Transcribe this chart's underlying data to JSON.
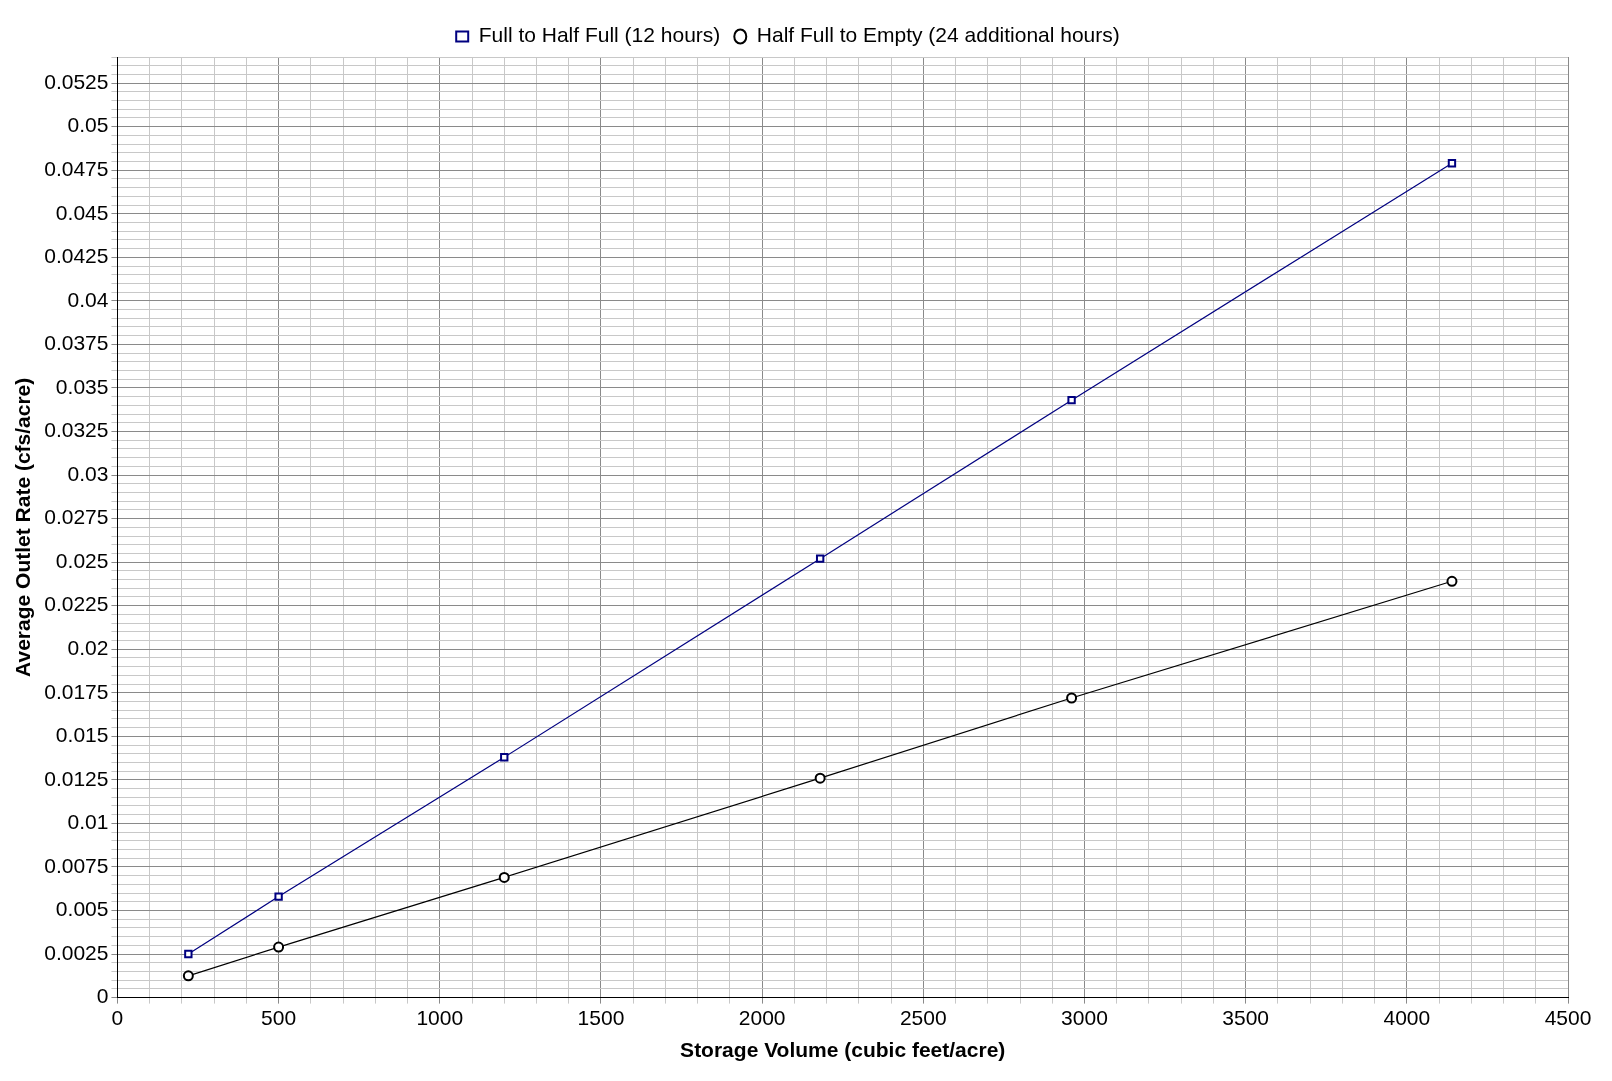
{
  "chart_data": {
    "type": "line",
    "xlabel": "Storage Volume (cubic feet/acre)",
    "ylabel": "Average Outlet Rate (cfs/acre)",
    "xlim": [
      0,
      4500
    ],
    "xticks": [
      0,
      500,
      1000,
      1500,
      2000,
      2500,
      3000,
      3500,
      4000,
      4500
    ],
    "ylim": [
      0,
      0.054
    ],
    "yticks": [
      0,
      0.0025,
      0.005,
      0.0075,
      0.01,
      0.0125,
      0.015,
      0.0175,
      0.02,
      0.0225,
      0.025,
      0.0275,
      0.03,
      0.0325,
      0.035,
      0.0375,
      0.04,
      0.0425,
      0.045,
      0.0475,
      0.05,
      0.0525
    ],
    "grid": true,
    "legend": "top",
    "line_style": "solid",
    "series": [
      {
        "name": "Full to Half Full (12 hours)",
        "color": "#000080",
        "marker": "square",
        "x": [
          220,
          500,
          1200,
          2180,
          2960,
          4140
        ],
        "values": [
          0.0025,
          0.0058,
          0.0138,
          0.0252,
          0.0343,
          0.0479
        ]
      },
      {
        "name": "Half Full to Empty (24 additional hours)",
        "color": "#000000",
        "marker": "circle",
        "x": [
          220,
          500,
          1200,
          2180,
          2960,
          4140
        ],
        "values": [
          0.00125,
          0.0029,
          0.0069,
          0.0126,
          0.0172,
          0.0239
        ]
      }
    ]
  }
}
